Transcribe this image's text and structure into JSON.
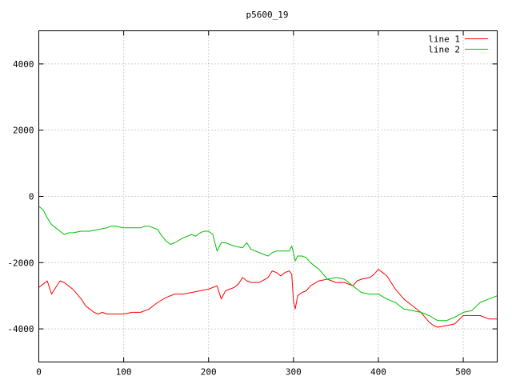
{
  "chart_data": {
    "type": "line",
    "title": "p5600_19",
    "xlabel": "",
    "ylabel": "",
    "xlim": [
      0,
      540
    ],
    "ylim": [
      -5000,
      5000
    ],
    "xticks": [
      0,
      100,
      200,
      300,
      400,
      500
    ],
    "yticks": [
      -4000,
      -2000,
      0,
      2000,
      4000
    ],
    "xtick_labels": [
      "0",
      "100",
      "200",
      "300",
      "400",
      "500"
    ],
    "ytick_labels": [
      "-4000",
      "-2000",
      "0",
      "2000",
      "4000"
    ],
    "grid": true,
    "legend_position": "top-right",
    "series": [
      {
        "name": "line 1",
        "color": "#ff0000",
        "points": [
          [
            0,
            -2750
          ],
          [
            5,
            -2650
          ],
          [
            10,
            -2550
          ],
          [
            15,
            -2950
          ],
          [
            20,
            -2750
          ],
          [
            25,
            -2550
          ],
          [
            30,
            -2600
          ],
          [
            35,
            -2700
          ],
          [
            40,
            -2800
          ],
          [
            45,
            -2950
          ],
          [
            50,
            -3100
          ],
          [
            55,
            -3300
          ],
          [
            60,
            -3400
          ],
          [
            65,
            -3500
          ],
          [
            70,
            -3550
          ],
          [
            75,
            -3500
          ],
          [
            80,
            -3550
          ],
          [
            90,
            -3550
          ],
          [
            100,
            -3550
          ],
          [
            110,
            -3500
          ],
          [
            120,
            -3500
          ],
          [
            130,
            -3400
          ],
          [
            140,
            -3200
          ],
          [
            150,
            -3050
          ],
          [
            160,
            -2950
          ],
          [
            170,
            -2950
          ],
          [
            180,
            -2900
          ],
          [
            190,
            -2850
          ],
          [
            200,
            -2800
          ],
          [
            205,
            -2750
          ],
          [
            210,
            -2700
          ],
          [
            215,
            -3100
          ],
          [
            220,
            -2850
          ],
          [
            230,
            -2750
          ],
          [
            235,
            -2650
          ],
          [
            240,
            -2450
          ],
          [
            245,
            -2550
          ],
          [
            250,
            -2600
          ],
          [
            260,
            -2600
          ],
          [
            270,
            -2450
          ],
          [
            275,
            -2250
          ],
          [
            280,
            -2300
          ],
          [
            285,
            -2400
          ],
          [
            290,
            -2300
          ],
          [
            295,
            -2250
          ],
          [
            298,
            -2350
          ],
          [
            300,
            -3150
          ],
          [
            302,
            -3400
          ],
          [
            305,
            -3000
          ],
          [
            310,
            -2900
          ],
          [
            315,
            -2850
          ],
          [
            320,
            -2700
          ],
          [
            330,
            -2550
          ],
          [
            340,
            -2500
          ],
          [
            350,
            -2600
          ],
          [
            360,
            -2600
          ],
          [
            370,
            -2700
          ],
          [
            375,
            -2550
          ],
          [
            380,
            -2500
          ],
          [
            390,
            -2450
          ],
          [
            395,
            -2350
          ],
          [
            400,
            -2200
          ],
          [
            405,
            -2300
          ],
          [
            410,
            -2400
          ],
          [
            415,
            -2600
          ],
          [
            420,
            -2800
          ],
          [
            430,
            -3100
          ],
          [
            440,
            -3300
          ],
          [
            450,
            -3500
          ],
          [
            460,
            -3800
          ],
          [
            465,
            -3900
          ],
          [
            470,
            -3950
          ],
          [
            480,
            -3900
          ],
          [
            490,
            -3850
          ],
          [
            500,
            -3600
          ],
          [
            510,
            -3600
          ],
          [
            520,
            -3600
          ],
          [
            530,
            -3700
          ],
          [
            540,
            -3700
          ]
        ]
      },
      {
        "name": "line 2",
        "color": "#00c000",
        "points": [
          [
            0,
            -300
          ],
          [
            5,
            -400
          ],
          [
            10,
            -650
          ],
          [
            15,
            -850
          ],
          [
            20,
            -950
          ],
          [
            25,
            -1050
          ],
          [
            30,
            -1150
          ],
          [
            35,
            -1100
          ],
          [
            40,
            -1100
          ],
          [
            50,
            -1050
          ],
          [
            60,
            -1050
          ],
          [
            70,
            -1000
          ],
          [
            80,
            -950
          ],
          [
            85,
            -900
          ],
          [
            90,
            -900
          ],
          [
            100,
            -950
          ],
          [
            110,
            -950
          ],
          [
            120,
            -950
          ],
          [
            125,
            -900
          ],
          [
            130,
            -900
          ],
          [
            140,
            -1000
          ],
          [
            145,
            -1200
          ],
          [
            150,
            -1350
          ],
          [
            155,
            -1450
          ],
          [
            160,
            -1400
          ],
          [
            170,
            -1250
          ],
          [
            180,
            -1150
          ],
          [
            185,
            -1200
          ],
          [
            190,
            -1100
          ],
          [
            195,
            -1050
          ],
          [
            200,
            -1050
          ],
          [
            205,
            -1150
          ],
          [
            210,
            -1650
          ],
          [
            215,
            -1400
          ],
          [
            220,
            -1400
          ],
          [
            230,
            -1500
          ],
          [
            240,
            -1550
          ],
          [
            245,
            -1400
          ],
          [
            250,
            -1600
          ],
          [
            260,
            -1700
          ],
          [
            270,
            -1800
          ],
          [
            275,
            -1700
          ],
          [
            280,
            -1650
          ],
          [
            290,
            -1650
          ],
          [
            295,
            -1650
          ],
          [
            298,
            -1500
          ],
          [
            300,
            -1700
          ],
          [
            302,
            -1950
          ],
          [
            305,
            -1800
          ],
          [
            310,
            -1800
          ],
          [
            315,
            -1850
          ],
          [
            320,
            -2000
          ],
          [
            330,
            -2200
          ],
          [
            340,
            -2500
          ],
          [
            350,
            -2450
          ],
          [
            360,
            -2500
          ],
          [
            370,
            -2700
          ],
          [
            380,
            -2900
          ],
          [
            390,
            -2950
          ],
          [
            400,
            -2950
          ],
          [
            410,
            -3100
          ],
          [
            420,
            -3200
          ],
          [
            430,
            -3400
          ],
          [
            440,
            -3450
          ],
          [
            450,
            -3500
          ],
          [
            460,
            -3600
          ],
          [
            470,
            -3750
          ],
          [
            480,
            -3750
          ],
          [
            490,
            -3650
          ],
          [
            500,
            -3500
          ],
          [
            510,
            -3450
          ],
          [
            520,
            -3200
          ],
          [
            530,
            -3100
          ],
          [
            540,
            -3000
          ]
        ]
      }
    ]
  }
}
